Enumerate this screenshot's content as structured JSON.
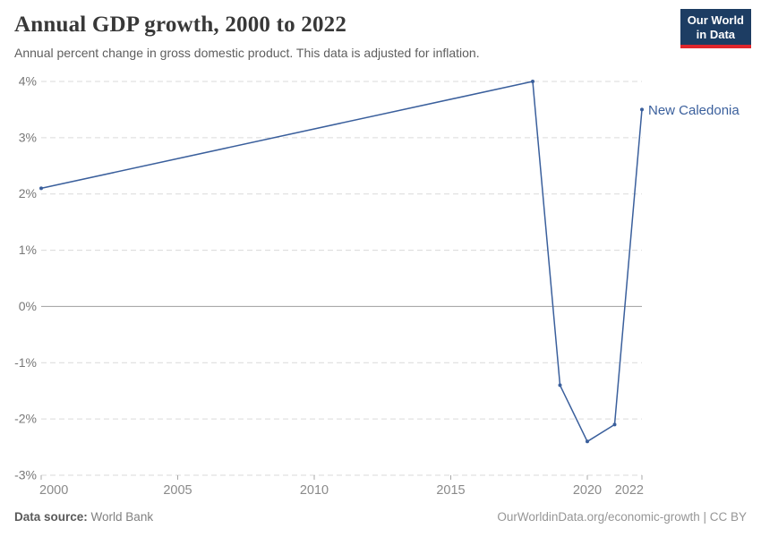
{
  "header": {
    "title": "Annual GDP growth, 2000 to 2022",
    "subtitle": "Annual percent change in gross domestic product. This data is adjusted for inflation.",
    "logo": {
      "line1": "Our World",
      "line2": "in Data",
      "bg_color": "#1d3d63",
      "accent_color": "#e0262c"
    }
  },
  "chart_data": {
    "type": "line",
    "title": "Annual GDP growth, 2000 to 2022",
    "xlabel": "",
    "ylabel": "",
    "xlim": [
      2000,
      2022
    ],
    "ylim": [
      -3,
      4
    ],
    "x_ticks": [
      2000,
      2005,
      2010,
      2015,
      2020,
      2022
    ],
    "y_ticks": [
      4,
      3,
      2,
      1,
      0,
      -1,
      -2,
      -3
    ],
    "y_tick_suffix": "%",
    "grid": "horizontal-dashed",
    "zero_line": true,
    "legend_position": "end-of-line-label",
    "series": [
      {
        "name": "New Caledonia",
        "color": "#3a5f9c",
        "points": [
          [
            2000,
            2.1
          ],
          [
            2018,
            4.0
          ],
          [
            2019,
            -1.4
          ],
          [
            2020,
            -2.4
          ],
          [
            2021,
            -2.1
          ],
          [
            2022,
            3.5
          ]
        ]
      }
    ]
  },
  "footer": {
    "source_label": "Data source:",
    "source_value": "World Bank",
    "credit": "OurWorldinData.org/economic-growth | CC BY"
  }
}
